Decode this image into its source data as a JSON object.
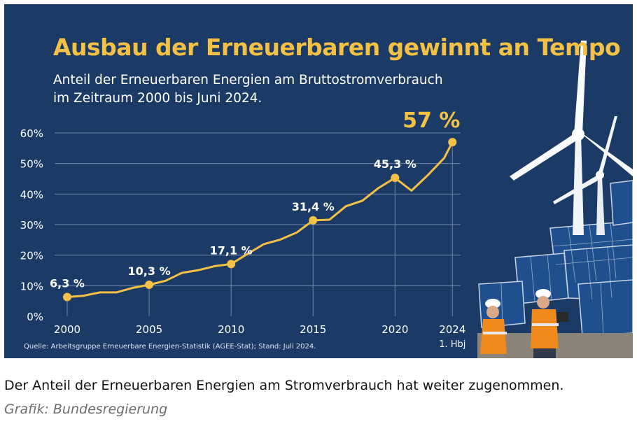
{
  "infographic": {
    "title": "Ausbau der Erneuerbaren gewinnt an Tempo",
    "subtitle_line1": "Anteil der Erneuerbaren Energien am Bruttostromverbrauch",
    "subtitle_line2": "im Zeitraum 2000 bis Juni 2024.",
    "source": "Quelle: Arbeitsgruppe Erneuerbare Energien-Statistik (AGEE-Stat); Stand: Juli 2024.",
    "colors": {
      "background": "#1c3a66",
      "accent": "#f3c146",
      "grid": "#6f87a8",
      "text": "#ffffff"
    },
    "photo": "wind-turbines-solar-panels-workers"
  },
  "chart_data": {
    "type": "line",
    "ylim": [
      0,
      60
    ],
    "xlim": [
      2000,
      2024
    ],
    "yticks": [
      0,
      10,
      20,
      30,
      40,
      50,
      60
    ],
    "ytick_labels": [
      "0%",
      "10%",
      "20%",
      "30%",
      "40%",
      "50%",
      "60%"
    ],
    "xticks": [
      {
        "x": 2000,
        "label": "2000"
      },
      {
        "x": 2005,
        "label": "2005"
      },
      {
        "x": 2010,
        "label": "2010"
      },
      {
        "x": 2015,
        "label": "2015"
      },
      {
        "x": 2020,
        "label": "2020"
      },
      {
        "x": 2023.5,
        "label": "2024",
        "sublabel": "1. Hbj"
      }
    ],
    "grid": true,
    "series": [
      {
        "x": [
          2000,
          2001,
          2002,
          2003,
          2004,
          2005,
          2006,
          2007,
          2008,
          2009,
          2010,
          2011,
          2012,
          2013,
          2014,
          2015,
          2016,
          2017,
          2018,
          2019,
          2020,
          2021,
          2022,
          2023,
          2023.5
        ],
        "values": [
          6.3,
          6.7,
          7.8,
          7.8,
          9.3,
          10.3,
          11.6,
          14.2,
          15.1,
          16.4,
          17.1,
          20.4,
          23.6,
          25.1,
          27.4,
          31.4,
          31.6,
          36.0,
          37.8,
          42.0,
          45.3,
          41.1,
          46.2,
          51.8,
          57.0
        ],
        "color": "#f3c146"
      }
    ],
    "highlights": [
      {
        "x": 2000,
        "y": 6.3,
        "label": "6,3 %"
      },
      {
        "x": 2005,
        "y": 10.3,
        "label": "10,3 %"
      },
      {
        "x": 2010,
        "y": 17.1,
        "label": "17,1 %"
      },
      {
        "x": 2015,
        "y": 31.4,
        "label": "31,4 %"
      },
      {
        "x": 2020,
        "y": 45.3,
        "label": "45,3 %"
      },
      {
        "x": 2023.5,
        "y": 57.0,
        "label": "57 %",
        "emphasis": true
      }
    ]
  },
  "caption": "Der Anteil der Erneuerbaren Energien am Stromverbrauch hat weiter zugenommen.",
  "credit": "Grafik: Bundesregierung"
}
